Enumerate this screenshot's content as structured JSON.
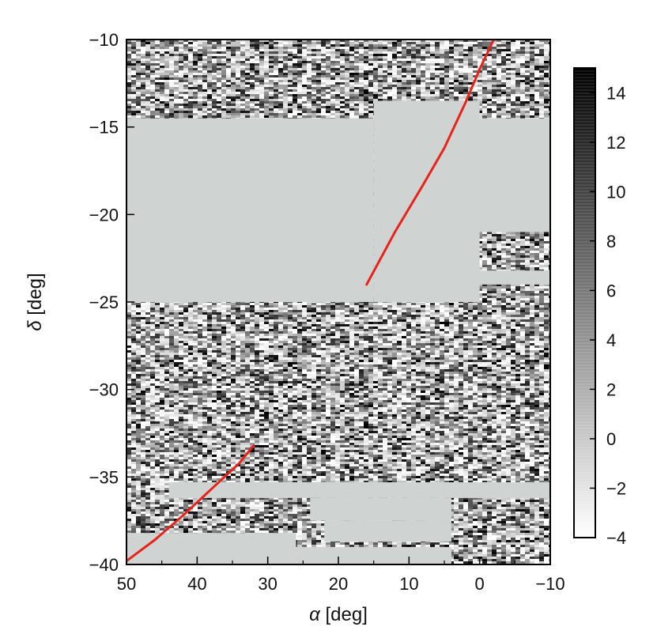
{
  "chart_data": {
    "type": "heatmap",
    "xlabel_symbol": "α",
    "xlabel_unit": "[deg]",
    "ylabel_symbol": "δ",
    "ylabel_unit": "[deg]",
    "xlim": [
      50,
      -10
    ],
    "ylim": [
      -40,
      -10
    ],
    "x_ticks": [
      50,
      40,
      30,
      20,
      10,
      0,
      -10
    ],
    "y_ticks": [
      -10,
      -15,
      -20,
      -25,
      -30,
      -35,
      -40
    ],
    "x_tick_labels": [
      "50",
      "40",
      "30",
      "20",
      "10",
      "0",
      "−10"
    ],
    "y_tick_labels": [
      "−10",
      "−15",
      "−20",
      "−25",
      "−30",
      "−35",
      "−40"
    ],
    "colorbar": {
      "range": [
        -4,
        15
      ],
      "ticks": [
        14,
        12,
        10,
        8,
        6,
        4,
        2,
        0,
        -2,
        -4
      ],
      "tick_labels": [
        "14",
        "12",
        "10",
        "8",
        "6",
        "4",
        "2",
        "0",
        "−2",
        "−4"
      ],
      "low_color": "#ffffff",
      "high_color": "#000000"
    },
    "masked_color": "#cfd4d2",
    "masked_regions": [
      {
        "ra": [
          50,
          15
        ],
        "dec": [
          -25,
          -14.5
        ]
      },
      {
        "ra": [
          15,
          0
        ],
        "dec": [
          -25,
          -13.5
        ]
      },
      {
        "ra": [
          0,
          -2
        ],
        "dec": [
          -21,
          -14.5
        ]
      },
      {
        "ra": [
          1,
          -10
        ],
        "dec": [
          -21,
          -14.5
        ]
      },
      {
        "ra": [
          0.5,
          -10
        ],
        "dec": [
          -24,
          -23.2
        ]
      },
      {
        "ra": [
          44,
          -10
        ],
        "dec": [
          -36.2,
          -35.3
        ]
      },
      {
        "ra": [
          24,
          4
        ],
        "dec": [
          -37.5,
          -36.2
        ]
      },
      {
        "ra": [
          50,
          26
        ],
        "dec": [
          -40,
          -38.2
        ]
      },
      {
        "ra": [
          26,
          4
        ],
        "dec": [
          -40,
          -39
        ]
      },
      {
        "ra": [
          22,
          4
        ],
        "dec": [
          -38.7,
          -37.5
        ]
      }
    ],
    "series": [
      {
        "color": "#e8231a",
        "points": [
          [
            16,
            -24
          ],
          [
            12,
            -21
          ],
          [
            8,
            -18.3
          ],
          [
            5,
            -16.2
          ],
          [
            2,
            -13.6
          ],
          [
            0,
            -11.7
          ],
          [
            -2,
            -10
          ]
        ]
      },
      {
        "color": "#e8231a",
        "points": [
          [
            50,
            -39.8
          ],
          [
            46,
            -38.6
          ],
          [
            42,
            -37.2
          ],
          [
            38,
            -35.7
          ],
          [
            34,
            -34.2
          ],
          [
            32,
            -33.2
          ]
        ]
      }
    ]
  }
}
